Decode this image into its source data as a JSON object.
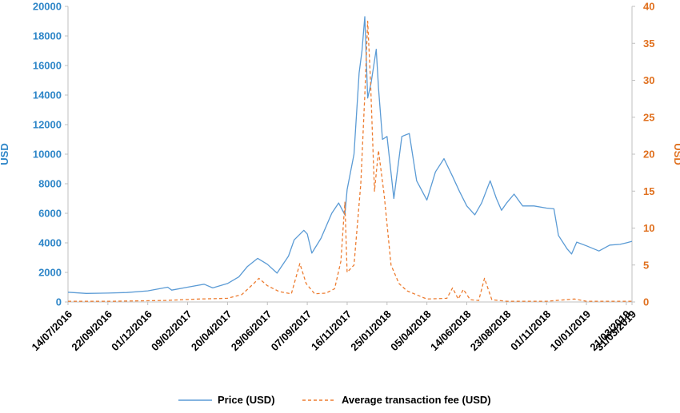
{
  "chart_data": {
    "type": "line",
    "title": "",
    "ylabel": "USD",
    "y2label": "USD",
    "ylim": [
      0,
      20000
    ],
    "y2lim": [
      0,
      40
    ],
    "yticks": [
      0,
      2000,
      4000,
      6000,
      8000,
      10000,
      12000,
      14000,
      16000,
      18000,
      20000
    ],
    "y2ticks": [
      0,
      5,
      10,
      15,
      20,
      25,
      30,
      35,
      40
    ],
    "xlim": [
      "2016-07-14",
      "2019-03-31"
    ],
    "xticks": [
      "14/07/2016",
      "22/09/2016",
      "01/12/2016",
      "09/02/2017",
      "20/04/2017",
      "29/06/2017",
      "07/09/2017",
      "16/11/2017",
      "25/01/2018",
      "05/04/2018",
      "14/06/2018",
      "23/08/2018",
      "01/11/2018",
      "10/01/2019",
      "21/03/2019",
      "31/03/2019"
    ],
    "grid": false,
    "legend_position": "bottom",
    "series": [
      {
        "name": "Price (USD)",
        "axis": "left",
        "color": "#5b9bd5",
        "style": "solid",
        "points": [
          [
            "2016-07-14",
            660
          ],
          [
            "2016-08-15",
            580
          ],
          [
            "2016-09-22",
            600
          ],
          [
            "2016-10-25",
            640
          ],
          [
            "2016-12-01",
            750
          ],
          [
            "2017-01-05",
            1000
          ],
          [
            "2017-01-12",
            800
          ],
          [
            "2017-02-09",
            1000
          ],
          [
            "2017-03-10",
            1200
          ],
          [
            "2017-03-25",
            950
          ],
          [
            "2017-04-20",
            1250
          ],
          [
            "2017-05-10",
            1700
          ],
          [
            "2017-05-25",
            2400
          ],
          [
            "2017-06-12",
            2950
          ],
          [
            "2017-06-29",
            2550
          ],
          [
            "2017-07-16",
            1950
          ],
          [
            "2017-08-05",
            3100
          ],
          [
            "2017-08-15",
            4200
          ],
          [
            "2017-09-01",
            4850
          ],
          [
            "2017-09-07",
            4600
          ],
          [
            "2017-09-15",
            3300
          ],
          [
            "2017-10-01",
            4300
          ],
          [
            "2017-10-20",
            6000
          ],
          [
            "2017-11-01",
            6700
          ],
          [
            "2017-11-12",
            5900
          ],
          [
            "2017-11-16",
            7600
          ],
          [
            "2017-11-28",
            10000
          ],
          [
            "2017-12-07",
            15500
          ],
          [
            "2017-12-12",
            17000
          ],
          [
            "2017-12-17",
            19300
          ],
          [
            "2017-12-22",
            13800
          ],
          [
            "2017-12-28",
            14800
          ],
          [
            "2018-01-06",
            17100
          ],
          [
            "2018-01-10",
            14500
          ],
          [
            "2018-01-17",
            11000
          ],
          [
            "2018-01-25",
            11200
          ],
          [
            "2018-02-06",
            7000
          ],
          [
            "2018-02-20",
            11200
          ],
          [
            "2018-03-05",
            11400
          ],
          [
            "2018-03-18",
            8200
          ],
          [
            "2018-04-05",
            6900
          ],
          [
            "2018-04-20",
            8800
          ],
          [
            "2018-05-05",
            9700
          ],
          [
            "2018-05-20",
            8500
          ],
          [
            "2018-06-01",
            7500
          ],
          [
            "2018-06-14",
            6500
          ],
          [
            "2018-06-28",
            5900
          ],
          [
            "2018-07-10",
            6700
          ],
          [
            "2018-07-25",
            8200
          ],
          [
            "2018-08-05",
            7000
          ],
          [
            "2018-08-14",
            6200
          ],
          [
            "2018-08-23",
            6700
          ],
          [
            "2018-09-05",
            7300
          ],
          [
            "2018-09-20",
            6500
          ],
          [
            "2018-10-10",
            6500
          ],
          [
            "2018-11-01",
            6350
          ],
          [
            "2018-11-14",
            6300
          ],
          [
            "2018-11-22",
            4500
          ],
          [
            "2018-12-07",
            3600
          ],
          [
            "2018-12-15",
            3250
          ],
          [
            "2018-12-24",
            4050
          ],
          [
            "2019-01-10",
            3800
          ],
          [
            "2019-02-01",
            3450
          ],
          [
            "2019-02-20",
            3850
          ],
          [
            "2019-03-10",
            3900
          ],
          [
            "2019-03-21",
            4000
          ],
          [
            "2019-03-31",
            4100
          ]
        ]
      },
      {
        "name": "Average transaction fee (USD)",
        "axis": "right",
        "color": "#ed7d31",
        "style": "dashed",
        "points": [
          [
            "2016-07-14",
            0.1
          ],
          [
            "2016-10-01",
            0.1
          ],
          [
            "2017-01-01",
            0.2
          ],
          [
            "2017-03-01",
            0.4
          ],
          [
            "2017-04-20",
            0.5
          ],
          [
            "2017-05-15",
            1.0
          ],
          [
            "2017-06-05",
            2.5
          ],
          [
            "2017-06-14",
            3.2
          ],
          [
            "2017-06-29",
            2.2
          ],
          [
            "2017-07-20",
            1.4
          ],
          [
            "2017-08-10",
            1.1
          ],
          [
            "2017-08-25",
            5.2
          ],
          [
            "2017-09-05",
            2.5
          ],
          [
            "2017-09-20",
            1.1
          ],
          [
            "2017-10-10",
            1.2
          ],
          [
            "2017-10-25",
            1.8
          ],
          [
            "2017-11-05",
            5.5
          ],
          [
            "2017-11-12",
            13.5
          ],
          [
            "2017-11-16",
            4.0
          ],
          [
            "2017-11-28",
            5.0
          ],
          [
            "2017-12-10",
            16.0
          ],
          [
            "2017-12-17",
            28.0
          ],
          [
            "2017-12-22",
            38.0
          ],
          [
            "2017-12-27",
            30.0
          ],
          [
            "2018-01-03",
            15.0
          ],
          [
            "2018-01-10",
            20.5
          ],
          [
            "2018-01-20",
            14.5
          ],
          [
            "2018-02-01",
            5.0
          ],
          [
            "2018-02-15",
            2.5
          ],
          [
            "2018-03-01",
            1.5
          ],
          [
            "2018-04-05",
            0.4
          ],
          [
            "2018-05-10",
            0.5
          ],
          [
            "2018-05-20",
            1.9
          ],
          [
            "2018-05-30",
            0.4
          ],
          [
            "2018-06-08",
            1.7
          ],
          [
            "2018-06-20",
            0.3
          ],
          [
            "2018-07-05",
            0.2
          ],
          [
            "2018-07-15",
            3.2
          ],
          [
            "2018-07-28",
            0.3
          ],
          [
            "2018-08-23",
            0.1
          ],
          [
            "2018-11-01",
            0.1
          ],
          [
            "2018-12-20",
            0.4
          ],
          [
            "2019-01-10",
            0.1
          ],
          [
            "2019-03-31",
            0.1
          ]
        ]
      }
    ]
  }
}
